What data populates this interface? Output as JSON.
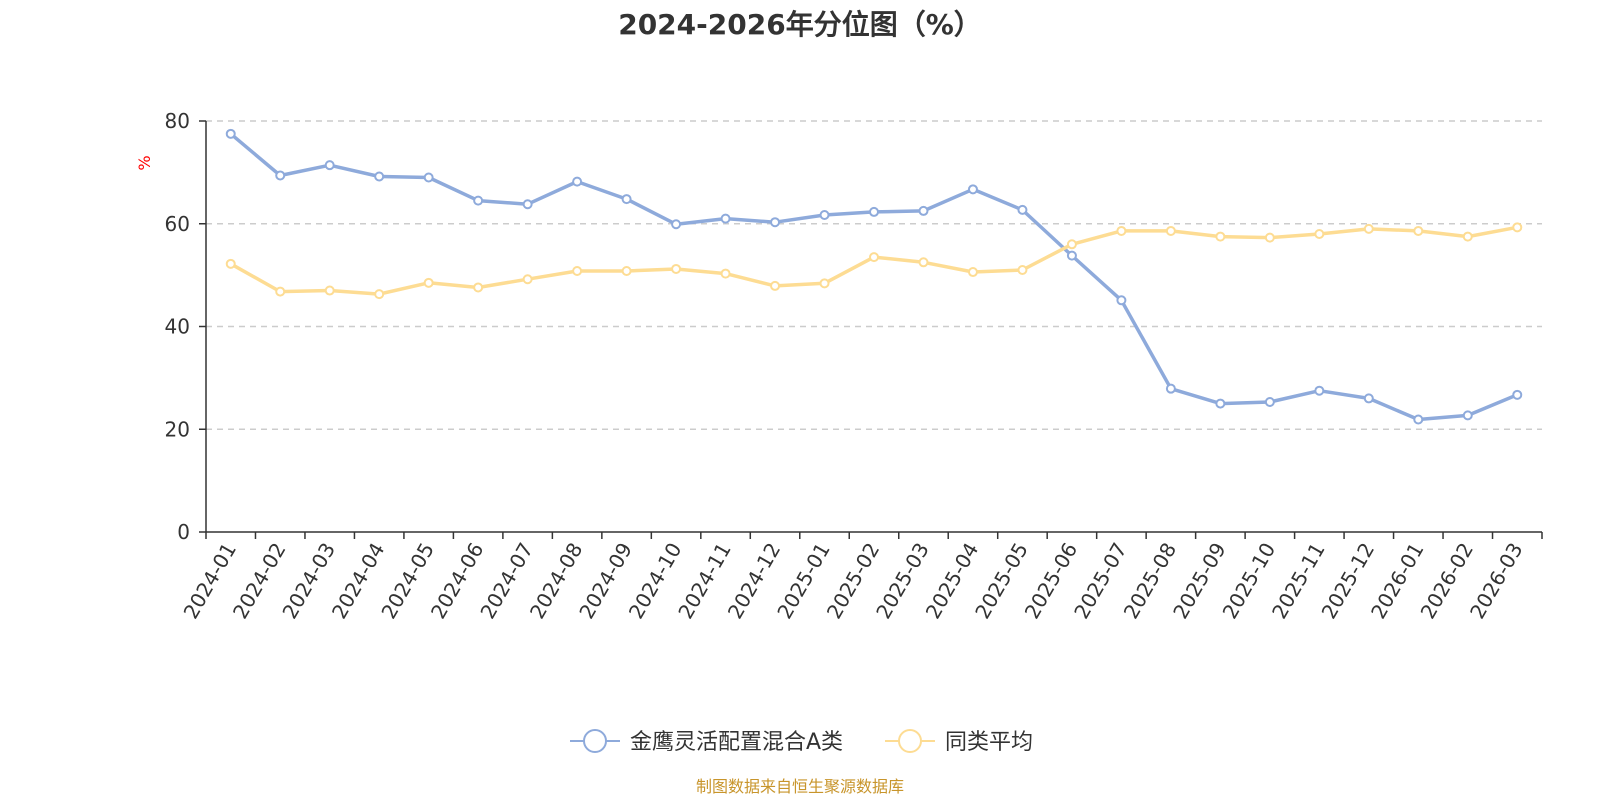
{
  "chart_data": {
    "type": "line",
    "title": "2024-2026年分位图（%）",
    "ylabel": "%",
    "xlabel": "",
    "ylim": [
      0,
      80
    ],
    "yticks": [
      0,
      20,
      40,
      60,
      80
    ],
    "grid": true,
    "legend_position": "bottom-center",
    "categories": [
      "2024-01",
      "2024-02",
      "2024-03",
      "2024-04",
      "2024-05",
      "2024-06",
      "2024-07",
      "2024-08",
      "2024-09",
      "2024-10",
      "2024-11",
      "2024-12",
      "2025-01",
      "2025-02",
      "2025-03",
      "2025-04",
      "2025-05",
      "2025-06",
      "2025-07",
      "2025-08",
      "2025-09",
      "2025-10",
      "2025-11",
      "2025-12",
      "2026-01",
      "2026-02",
      "2026-03"
    ],
    "series": [
      {
        "name": "金鹰灵活配置混合A类",
        "color": "#8eaadb",
        "values": [
          77.5,
          69.4,
          71.4,
          69.2,
          69.0,
          64.5,
          63.8,
          68.2,
          64.8,
          59.9,
          61.0,
          60.3,
          61.7,
          62.3,
          62.5,
          66.7,
          62.7,
          53.8,
          45.1,
          27.9,
          25.0,
          25.3,
          27.5,
          26.0,
          21.9,
          22.7,
          26.7
        ]
      },
      {
        "name": "同类平均",
        "color": "#fddc93",
        "values": [
          52.2,
          46.8,
          47.0,
          46.3,
          48.5,
          47.6,
          49.2,
          50.8,
          50.8,
          51.2,
          50.3,
          47.9,
          48.4,
          53.5,
          52.5,
          50.6,
          51.0,
          56.0,
          58.6,
          58.6,
          57.5,
          57.3,
          58.0,
          59.0,
          58.6,
          57.5,
          59.3
        ]
      }
    ]
  },
  "source_note": "制图数据来自恒生聚源数据库"
}
